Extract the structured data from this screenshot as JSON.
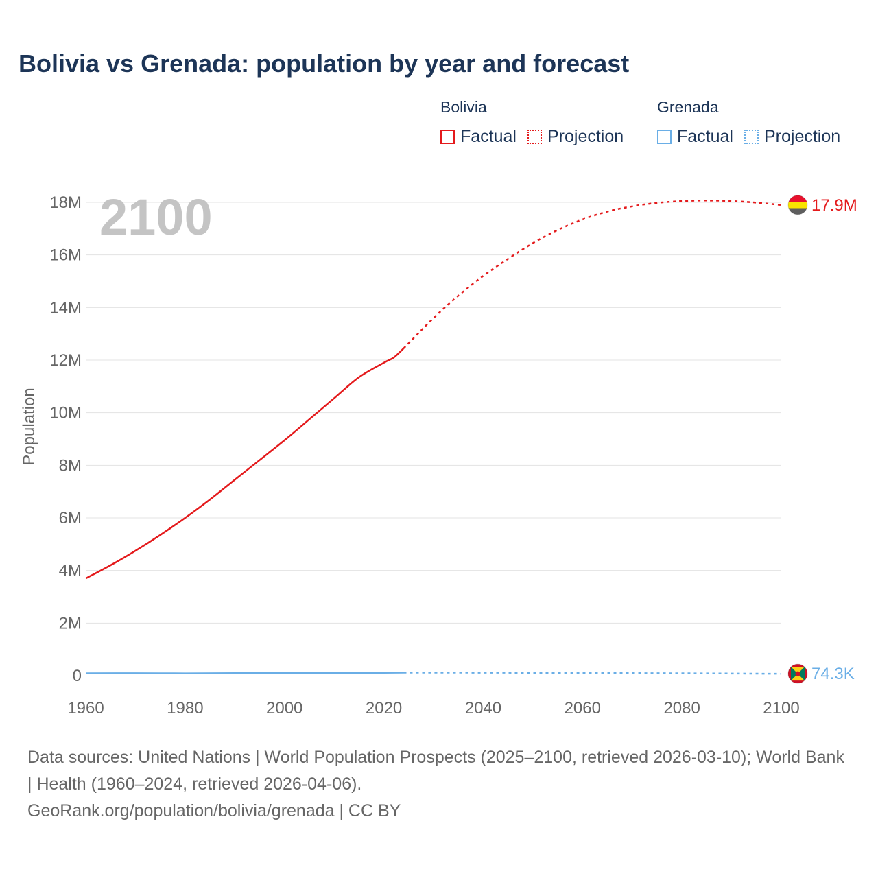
{
  "title": "Bolivia vs Grenada: population by year and forecast",
  "legend": {
    "groups": [
      {
        "name": "Bolivia",
        "color": "#e41a1c",
        "factual_label": "Factual",
        "projection_label": "Projection"
      },
      {
        "name": "Grenada",
        "color": "#6aaee6",
        "factual_label": "Factual",
        "projection_label": "Projection"
      }
    ]
  },
  "year_badge": "2100",
  "footer": {
    "sources": "Data sources: United Nations | World Population Prospects (2025–2100, retrieved 2026-03-10); World Bank | Health (1960–2024, retrieved 2026-04-06).",
    "link": "GeoRank.org/population/bolivia/grenada | CC BY"
  },
  "chart_data": {
    "type": "line",
    "title": "Bolivia vs Grenada: population by year and forecast",
    "xlabel": "",
    "ylabel": "Population",
    "xlim": [
      1960,
      2100
    ],
    "ylim": [
      0,
      18000000
    ],
    "x_ticks": [
      1960,
      1980,
      2000,
      2020,
      2040,
      2060,
      2080,
      2100
    ],
    "x_tick_labels": [
      "1960",
      "1980",
      "2000",
      "2020",
      "2040",
      "2060",
      "2080",
      "2100"
    ],
    "y_ticks": [
      0,
      2000000,
      4000000,
      6000000,
      8000000,
      10000000,
      12000000,
      14000000,
      16000000,
      18000000
    ],
    "y_tick_labels": [
      "0",
      "2M",
      "4M",
      "6M",
      "8M",
      "10M",
      "12M",
      "14M",
      "16M",
      "18M"
    ],
    "grid": true,
    "legend_position": "top-right",
    "series": [
      {
        "name": "Bolivia",
        "color": "#e41a1c",
        "end_label": "17.9M",
        "factual": {
          "x": [
            1960,
            1965,
            1970,
            1975,
            1980,
            1985,
            1990,
            1995,
            2000,
            2005,
            2010,
            2015,
            2020,
            2022,
            2024
          ],
          "y": [
            3700000,
            4200000,
            4750000,
            5350000,
            6000000,
            6700000,
            7450000,
            8200000,
            8950000,
            9750000,
            10550000,
            11350000,
            11900000,
            12100000,
            12450000
          ]
        },
        "projection": {
          "x": [
            2024,
            2030,
            2035,
            2040,
            2045,
            2050,
            2055,
            2060,
            2065,
            2070,
            2075,
            2080,
            2085,
            2090,
            2095,
            2100
          ],
          "y": [
            12450000,
            13600000,
            14450000,
            15200000,
            15850000,
            16450000,
            16950000,
            17350000,
            17650000,
            17850000,
            17980000,
            18050000,
            18070000,
            18050000,
            17990000,
            17900000
          ]
        }
      },
      {
        "name": "Grenada",
        "color": "#6aaee6",
        "end_label": "74.3K",
        "factual": {
          "x": [
            1960,
            1970,
            1980,
            1990,
            2000,
            2010,
            2020,
            2024
          ],
          "y": [
            90000,
            94000,
            89000,
            96000,
            102000,
            109000,
            113000,
            117000
          ]
        },
        "projection": {
          "x": [
            2024,
            2040,
            2060,
            2080,
            2100
          ],
          "y": [
            117000,
            115000,
            105000,
            90000,
            74300
          ]
        }
      }
    ]
  }
}
